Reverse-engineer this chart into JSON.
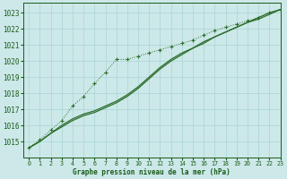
{
  "title": "Graphe pression niveau de la mer (hPa)",
  "xlabel": "Graphe pression niveau de la mer (hPa)",
  "x": [
    0,
    1,
    2,
    3,
    4,
    5,
    6,
    7,
    8,
    9,
    10,
    11,
    12,
    13,
    14,
    15,
    16,
    17,
    18,
    19,
    20,
    21,
    22,
    23
  ],
  "line_dotted": [
    1014.6,
    1015.1,
    1015.7,
    1016.3,
    1017.2,
    1017.8,
    1018.6,
    1019.3,
    1020.1,
    1020.1,
    1020.3,
    1020.5,
    1020.7,
    1020.9,
    1021.1,
    1021.3,
    1021.6,
    1021.9,
    1022.1,
    1022.3,
    1022.5,
    1022.7,
    1023.0,
    1023.2
  ],
  "line_solid1": [
    1014.6,
    1015.0,
    1015.5,
    1016.0,
    1016.4,
    1016.7,
    1016.9,
    1017.2,
    1017.5,
    1017.9,
    1018.4,
    1019.0,
    1019.6,
    1020.1,
    1020.5,
    1020.8,
    1021.2,
    1021.5,
    1021.8,
    1022.1,
    1022.4,
    1022.6,
    1022.9,
    1023.2
  ],
  "line_solid2": [
    1014.6,
    1015.0,
    1015.5,
    1015.9,
    1016.3,
    1016.6,
    1016.8,
    1017.1,
    1017.4,
    1017.8,
    1018.3,
    1018.9,
    1019.5,
    1020.0,
    1020.4,
    1020.8,
    1021.1,
    1021.5,
    1021.8,
    1022.1,
    1022.4,
    1022.7,
    1023.0,
    1023.2
  ],
  "line_color": "#2d6e2d",
  "bg_color": "#cce8e8",
  "grid_color": "#aad4d4",
  "text_color": "#1a5c1a",
  "ylim": [
    1014.0,
    1023.6
  ],
  "yticks": [
    1015,
    1016,
    1017,
    1018,
    1019,
    1020,
    1021,
    1022,
    1023
  ],
  "xlim": [
    -0.5,
    23
  ],
  "xticks": [
    0,
    1,
    2,
    3,
    4,
    5,
    6,
    7,
    8,
    9,
    10,
    11,
    12,
    13,
    14,
    15,
    16,
    17,
    18,
    19,
    20,
    21,
    22,
    23
  ]
}
